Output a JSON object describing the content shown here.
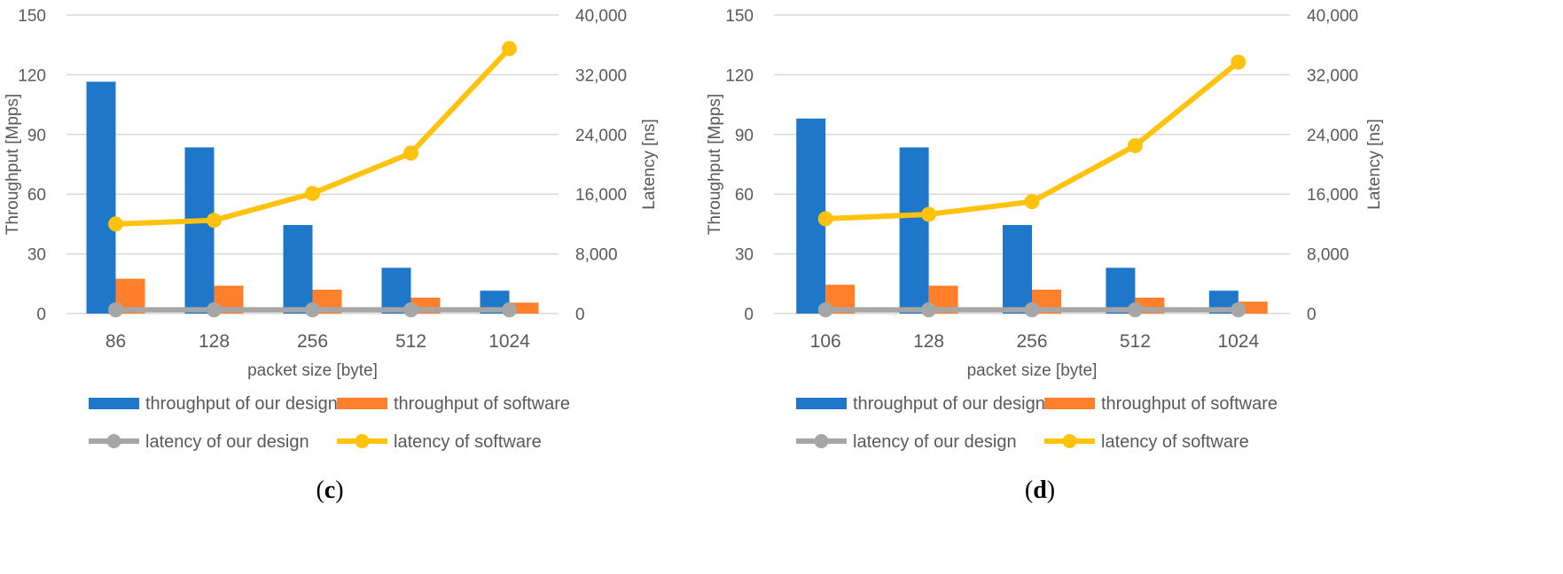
{
  "colors": {
    "throughput_design": "#1f77c9",
    "throughput_software": "#ff7f2a",
    "latency_design": "#a6a6a6",
    "latency_software": "#ffc20e",
    "grid": "#d9d9d9",
    "text": "#595959"
  },
  "chart_data": [
    {
      "type": "bar+line",
      "panel_label": "c",
      "categories": [
        "86",
        "128",
        "256",
        "512",
        "1024"
      ],
      "xlabel": "packet size [byte]",
      "ylabel_left": "Throughput [Mpps]",
      "ylabel_right": "Latency [ns]",
      "ylim_left": [
        0,
        150
      ],
      "ylim_right": [
        0,
        40000
      ],
      "yticks_left": [
        "0",
        "30",
        "60",
        "90",
        "120",
        "150"
      ],
      "yticks_right": [
        "0",
        "8,000",
        "16,000",
        "24,000",
        "32,000",
        "40,000"
      ],
      "grid": true,
      "legend_position": "bottom",
      "series": [
        {
          "name": "throughput of our design",
          "kind": "bar",
          "axis": "left",
          "values": [
            116.5,
            83.5,
            44.5,
            23,
            11.5
          ]
        },
        {
          "name": "throughput of software",
          "kind": "bar",
          "axis": "left",
          "values": [
            17.5,
            14,
            12,
            8,
            5.5
          ]
        },
        {
          "name": "latency of our design",
          "kind": "line",
          "axis": "right",
          "values": [
            500,
            500,
            500,
            500,
            500
          ]
        },
        {
          "name": "latency of software",
          "kind": "line",
          "axis": "right",
          "values": [
            12000,
            12500,
            16100,
            21500,
            35500
          ]
        }
      ]
    },
    {
      "type": "bar+line",
      "panel_label": "d",
      "categories": [
        "106",
        "128",
        "256",
        "512",
        "1024"
      ],
      "xlabel": "packet size [byte]",
      "ylabel_left": "Throughput [Mpps]",
      "ylabel_right": "Latency [ns]",
      "ylim_left": [
        0,
        150
      ],
      "ylim_right": [
        0,
        40000
      ],
      "yticks_left": [
        "0",
        "30",
        "60",
        "90",
        "120",
        "150"
      ],
      "yticks_right": [
        "0",
        "8,000",
        "16,000",
        "24,000",
        "32,000",
        "40,000"
      ],
      "grid": true,
      "legend_position": "bottom",
      "series": [
        {
          "name": "throughput of our design",
          "kind": "bar",
          "axis": "left",
          "values": [
            98,
            83.5,
            44.5,
            23,
            11.5
          ]
        },
        {
          "name": "throughput of software",
          "kind": "bar",
          "axis": "left",
          "values": [
            14.5,
            14,
            12,
            8,
            6
          ]
        },
        {
          "name": "latency of our design",
          "kind": "line",
          "axis": "right",
          "values": [
            500,
            500,
            500,
            500,
            500
          ]
        },
        {
          "name": "latency of software",
          "kind": "line",
          "axis": "right",
          "values": [
            12700,
            13300,
            15000,
            22500,
            33700
          ]
        }
      ]
    }
  ]
}
